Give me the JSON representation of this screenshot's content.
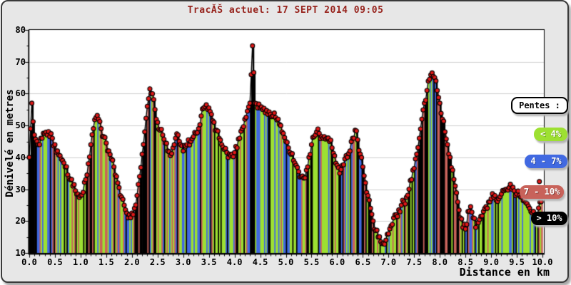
{
  "window": {
    "background": "#e7e7e7",
    "frame_border": "#3a3a3a"
  },
  "title": {
    "text": "TracĂŠ actuel: 17 SEPT 2014 09:05",
    "color": "#97231c"
  },
  "axes": {
    "y_label": "Dénivelé en metres",
    "x_label": "Distance en km",
    "y_ticks": [
      80,
      70,
      60,
      50,
      40,
      30,
      20,
      10
    ],
    "y_minor_step": 5,
    "y_range": [
      10,
      80
    ],
    "x_ticks": [
      "0.0",
      "0.5",
      "1.0",
      "1.5",
      "2.0",
      "2.5",
      "3.0",
      "3.5",
      "4.0",
      "4.5",
      "5.0",
      "5.5",
      "6.0",
      "6.5",
      "7.0",
      "7.5",
      "8.0",
      "8.5",
      "9.0",
      "9.5",
      "10.0"
    ],
    "x_minor_step_km": 0.1,
    "x_range": [
      0,
      10
    ]
  },
  "legend": {
    "title": "Pentes :"
  },
  "chart_data": {
    "type": "area",
    "title": "TracĂŠ actuel: 17 SEPT 2014 09:05",
    "xlabel": "Distance en km",
    "ylabel": "Dénivelé en metres",
    "xlim": [
      0,
      10
    ],
    "ylim": [
      10,
      80
    ],
    "grid": "horizontal",
    "grid_color": "#cfcfcf",
    "plot_bg": "#ffffff",
    "line_color": "#000000",
    "marker_color": "#e01818",
    "marker_outline": "#000000",
    "slope_classes": [
      {
        "label": "< 4%",
        "max_pct": 4,
        "color": "#9de032"
      },
      {
        "label": "4 - 7%",
        "max_pct": 7,
        "color": "#4169e1"
      },
      {
        "label": "7 - 10%",
        "max_pct": 10,
        "color": "#c8625a"
      },
      {
        "label": "> 10%",
        "max_pct": null,
        "color": "#000000"
      }
    ],
    "x_start_km": 0.0,
    "x_step_km": 0.05,
    "elevation_m": [
      40,
      57,
      47,
      45,
      44,
      46,
      47.5,
      47,
      46.5,
      46,
      44,
      42,
      40.5,
      39,
      37,
      34.5,
      33,
      31,
      29.5,
      28.5,
      28,
      29,
      33,
      38,
      44,
      49,
      52.5,
      52,
      49,
      46.5,
      44.5,
      42,
      39.5,
      37,
      34,
      30.5,
      27.5,
      25,
      22.5,
      22,
      22.5,
      24,
      28,
      34,
      41,
      48,
      56,
      61.5,
      60,
      55,
      51,
      48.5,
      47,
      44.5,
      42,
      40.5,
      43,
      46,
      47,
      44,
      42,
      43.5,
      45.5,
      45,
      46.5,
      47.5,
      49,
      53,
      55.5,
      56.5,
      55.5,
      53.5,
      51,
      48.5,
      46,
      44,
      42.5,
      41.5,
      41,
      41,
      41.5,
      43,
      46,
      49,
      52,
      54.5,
      57,
      75,
      57,
      55.5,
      55.5,
      55,
      54,
      53.5,
      53.5,
      53,
      52.5,
      52,
      50,
      47.5,
      45,
      43,
      41,
      39,
      37.5,
      35.5,
      34,
      33.5,
      36,
      40,
      44,
      46.5,
      48,
      47.5,
      46.5,
      46.5,
      46,
      45,
      43,
      40.5,
      37.5,
      35,
      37.5,
      39.5,
      40,
      42,
      46,
      48.5,
      45.5,
      41,
      37,
      32,
      28,
      24,
      20,
      17,
      15,
      13.5,
      13,
      14,
      16,
      18.5,
      21,
      22,
      23.5,
      25,
      26,
      27.5,
      30,
      33,
      36.5,
      41,
      46,
      52,
      57,
      61,
      64.5,
      66.5,
      65,
      61,
      57,
      52,
      48,
      44,
      40,
      36,
      31,
      26,
      21,
      18,
      17.5,
      23,
      24.5,
      21,
      18,
      19.5,
      21.5,
      23,
      24.5,
      26,
      27,
      27.5,
      26.5,
      27,
      28.5,
      29.5,
      30,
      30.5,
      30,
      29.5,
      28.5,
      28,
      27.5,
      26.5,
      25.5,
      24,
      22.5,
      21.5,
      21,
      26,
      28
    ],
    "stray_point": {
      "x_km": 9.94,
      "elevation_m": 32.4
    },
    "render": {
      "upsample": 2,
      "noise_m": 1.4,
      "seed": 1234567,
      "steep_spike_prob": 0.16
    }
  }
}
